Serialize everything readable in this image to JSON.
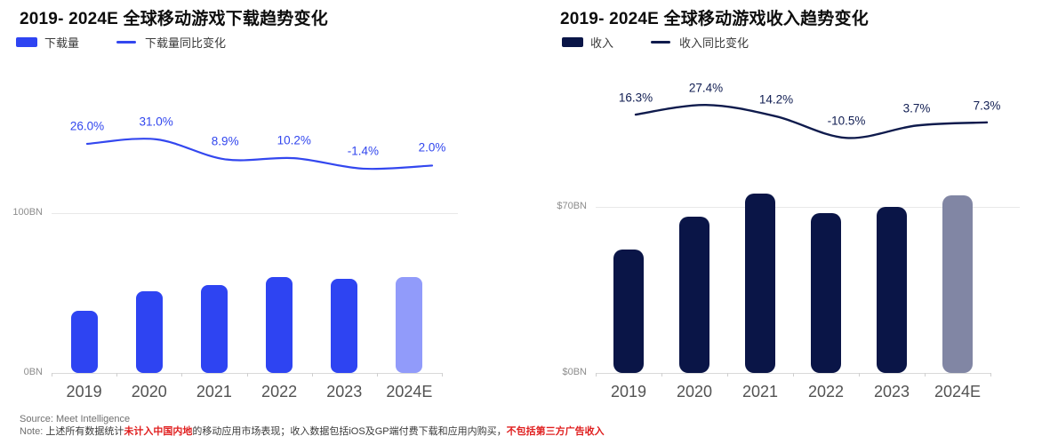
{
  "page": {
    "background": "#ffffff"
  },
  "footer": {
    "source": "Source: Meet Intelligence",
    "note_prefix": "Note: ",
    "note_parts": [
      {
        "text": "上述所有数据统计",
        "emphasis": false
      },
      {
        "text": "未计入中国内地",
        "emphasis": true
      },
      {
        "text": "的移动应用市场表现；收入数据包括iOS及GP端付费下载和应用内购买，",
        "emphasis": false
      },
      {
        "text": "不包括第三方广告收入",
        "emphasis": true
      }
    ],
    "emphasis_color": "#e02020"
  },
  "chart_data": [
    {
      "type": "bar",
      "title": "2019- 2024E 全球移动游戏下载趋势变化",
      "legend": {
        "bar": "下载量",
        "line": "下载量同比变化"
      },
      "legend_position": "top-left",
      "grid": "single horizontal gridline at axis top value",
      "categories": [
        "2019",
        "2020",
        "2021",
        "2022",
        "2023",
        "2024E"
      ],
      "series": [
        {
          "name": "下载量",
          "type": "bar",
          "unit": "BN",
          "values": [
            39,
            51,
            55,
            60,
            59,
            60
          ],
          "forecast_index": 5
        },
        {
          "name": "下载量同比变化",
          "type": "line",
          "unit": "%",
          "values": [
            26.0,
            31.0,
            8.9,
            10.2,
            -1.4,
            2.0
          ],
          "labels": [
            "26.0%",
            "31.0%",
            "8.9%",
            "10.2%",
            "-1.4%",
            "2.0%"
          ]
        }
      ],
      "y_axis": {
        "top_label": "100BN",
        "top_value": 100,
        "bottom_label": "0BN",
        "bottom_value": 0
      },
      "colors": {
        "bar": "#2e44f2",
        "bar_forecast": "#919bfa",
        "line": "#3347ef",
        "pct_label": "#3146ee"
      }
    },
    {
      "type": "bar",
      "title": "2019- 2024E 全球移动游戏收入趋势变化",
      "legend": {
        "bar": "收入",
        "line": "收入同比变化"
      },
      "legend_position": "top-left",
      "grid": "single horizontal gridline at axis top value",
      "categories": [
        "2019",
        "2020",
        "2021",
        "2022",
        "2023",
        "2024E"
      ],
      "series": [
        {
          "name": "收入",
          "type": "bar",
          "unit": "$BN",
          "values": [
            52,
            66,
            75.5,
            67.5,
            70,
            75
          ],
          "forecast_index": 5
        },
        {
          "name": "收入同比变化",
          "type": "line",
          "unit": "%",
          "values": [
            16.3,
            27.4,
            14.2,
            -10.5,
            3.7,
            7.3
          ],
          "labels": [
            "16.3%",
            "27.4%",
            "14.2%",
            "-10.5%",
            "3.7%",
            "7.3%"
          ]
        }
      ],
      "y_axis": {
        "top_label": "$70BN",
        "top_value": 70,
        "bottom_label": "$0BN",
        "bottom_value": 0
      },
      "colors": {
        "bar": "#0a1547",
        "bar_forecast": "#8186a4",
        "line": "#0f1b4d",
        "pct_label": "#101d52"
      }
    }
  ]
}
